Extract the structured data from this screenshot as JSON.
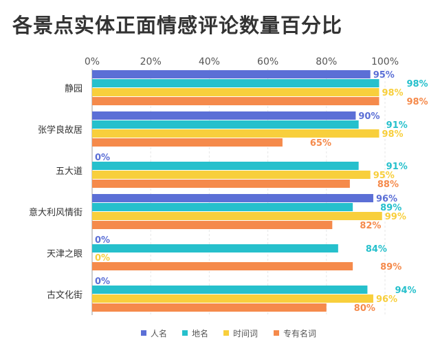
{
  "chart_data": {
    "type": "bar",
    "orientation": "horizontal",
    "title": "各景点实体正面情感评论数量百分比",
    "categories": [
      "静园",
      "张学良故居",
      "五大道",
      "意大利风情街",
      "天津之眼",
      "古文化街"
    ],
    "series": [
      {
        "name": "人名",
        "color": "#5b6fd6",
        "values": [
          95,
          90,
          0,
          96,
          0,
          0
        ]
      },
      {
        "name": "地名",
        "color": "#26c0cc",
        "values": [
          98,
          91,
          91,
          89,
          84,
          94
        ]
      },
      {
        "name": "时间词",
        "color": "#f8cf3c",
        "values": [
          98,
          98,
          95,
          99,
          0,
          96
        ]
      },
      {
        "name": "专有名词",
        "color": "#f58a4b",
        "values": [
          98,
          65,
          88,
          82,
          89,
          80
        ]
      }
    ],
    "xlim": [
      0,
      100
    ],
    "xticks": [
      "0%",
      "20%",
      "40%",
      "60%",
      "80%",
      "100%"
    ],
    "grid": true,
    "legend": "bottom"
  }
}
